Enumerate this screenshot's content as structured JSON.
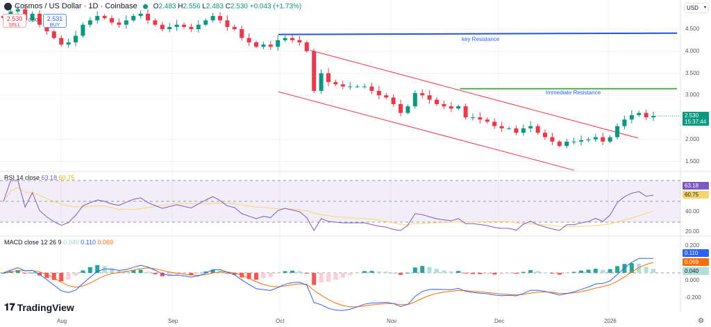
{
  "header": {
    "title": "Cosmos / US Dollar · 1D · Coinbase",
    "o_label": "O",
    "o": "2.483",
    "h_label": "H",
    "h": "2.556",
    "l_label": "L",
    "l": "2.483",
    "c_label": "C",
    "c": "2.530",
    "change": "+0.043 (+1.73%)"
  },
  "trade": {
    "sell_price": "2.530",
    "sell_label": "SELL",
    "buy_price": "2.531",
    "buy_label": "BUY",
    "spread": "0.001"
  },
  "currency": "USD",
  "price_tag": {
    "value": "2.530",
    "countdown": "15:37:44"
  },
  "rsi": {
    "label": "RSI 14 close",
    "value": "63.18",
    "ma": "60.75",
    "ticks": [
      "40.00",
      "20.00"
    ]
  },
  "macd": {
    "label": "MACD close 12 26 9",
    "hist": "0.040",
    "macd": "0.110",
    "signal": "0.069",
    "ticks": [
      "0.200",
      "0.000",
      "-0.200"
    ]
  },
  "time_axis": [
    "Aug",
    "Sep",
    "Oct",
    "Nov",
    "Dec",
    "2026"
  ],
  "brand": "TradingView",
  "chart_data": {
    "type": "candlestick",
    "price_ticks": [
      "4.500",
      "4.000",
      "3.500",
      "3.000",
      "2.000",
      "1.500"
    ],
    "ylim": [
      1.3,
      5.1
    ],
    "closes": [
      4.75,
      4.9,
      4.95,
      4.7,
      4.85,
      4.6,
      4.45,
      4.3,
      4.15,
      4.2,
      4.35,
      4.6,
      4.7,
      4.8,
      4.75,
      4.65,
      4.6,
      4.7,
      4.8,
      4.85,
      4.7,
      4.6,
      4.5,
      4.55,
      4.6,
      4.55,
      4.5,
      4.6,
      4.7,
      4.8,
      4.7,
      4.55,
      4.5,
      4.3,
      4.2,
      4.1,
      4.15,
      4.1,
      4.25,
      4.3,
      4.25,
      4.2,
      4.0,
      3.1,
      3.5,
      3.3,
      3.25,
      3.2,
      3.2,
      3.2,
      3.2,
      3.1,
      3.0,
      2.95,
      2.8,
      2.6,
      2.75,
      3.05,
      3.0,
      2.9,
      2.8,
      2.75,
      2.7,
      2.75,
      2.5,
      2.5,
      2.45,
      2.4,
      2.3,
      2.25,
      2.25,
      2.15,
      2.25,
      2.3,
      2.15,
      2.05,
      1.95,
      1.85,
      1.95,
      1.95,
      1.98,
      2.0,
      2.05,
      1.95,
      2.05,
      2.3,
      2.45,
      2.55,
      2.6,
      2.5,
      2.53
    ],
    "annotations": [
      {
        "label": "key Resistance",
        "color": "#1e53e5",
        "from": {
          "date": "2025-10-01",
          "price": 4.38
        },
        "to": {
          "date": "2026-01-31",
          "price": 4.41
        }
      },
      {
        "label": "Immediate Resistance",
        "color": "#4caf50",
        "from": {
          "date": "2025-11-21",
          "price": 3.15
        },
        "to": {
          "date": "2026-01-31",
          "price": 3.15
        }
      },
      {
        "label": "",
        "color": "#f23645",
        "from": {
          "date": "2025-10-10",
          "price": 4.02
        },
        "to": {
          "date": "2026-01-10",
          "price": 2.03
        }
      },
      {
        "label": "",
        "color": "#f23645",
        "from": {
          "date": "2025-10-01",
          "price": 3.08
        },
        "to": {
          "date": "2025-12-23",
          "price": 1.3
        }
      }
    ],
    "colors": {
      "up": "#089981",
      "down": "#f23645",
      "rsi": "#7e57c2",
      "rsi_ma": "#f7d56b",
      "macd": "#2962ff",
      "signal": "#ff6d00"
    }
  }
}
